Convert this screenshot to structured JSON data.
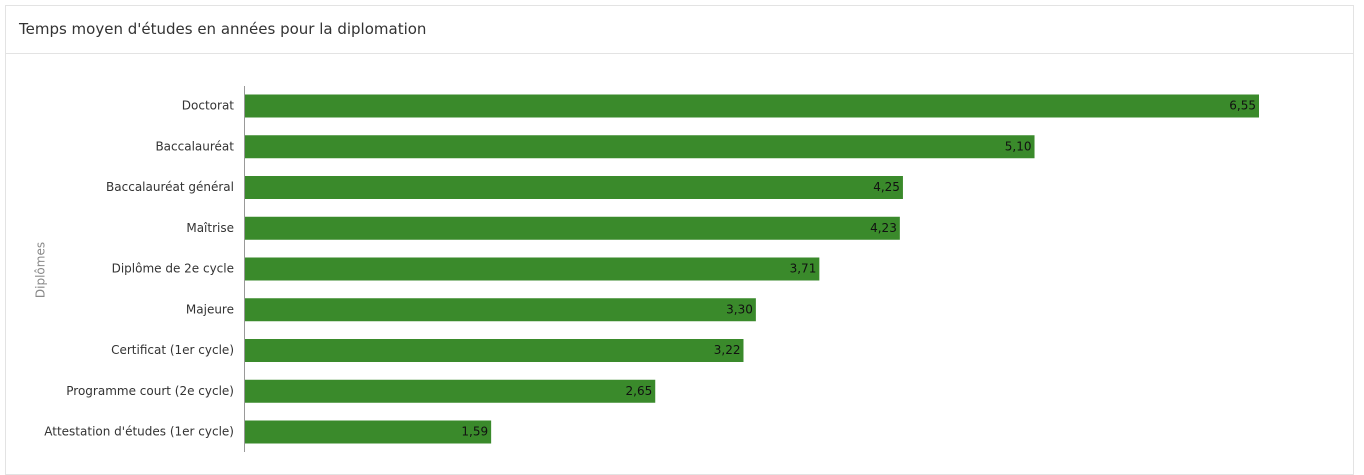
{
  "chart_data": {
    "type": "bar",
    "orientation": "horizontal",
    "title": "Temps moyen d'études en années pour la diplomation",
    "y_label": "Diplômes",
    "categories": [
      "Doctorat",
      "Baccalauréat",
      "Baccalauréat général",
      "Maîtrise",
      "Diplôme de 2e cycle",
      "Majeure",
      "Certificat (1er cycle)",
      "Programme court (2e cycle)",
      "Attestation d'études (1er cycle)"
    ],
    "values": [
      6.55,
      5.1,
      4.25,
      4.23,
      3.71,
      3.3,
      3.22,
      2.65,
      1.59
    ],
    "value_labels": [
      "6,55",
      "5,10",
      "4,25",
      "4,23",
      "3,71",
      "3,30",
      "3,22",
      "2,65",
      "1,59"
    ],
    "color": "#3a8a2b"
  }
}
